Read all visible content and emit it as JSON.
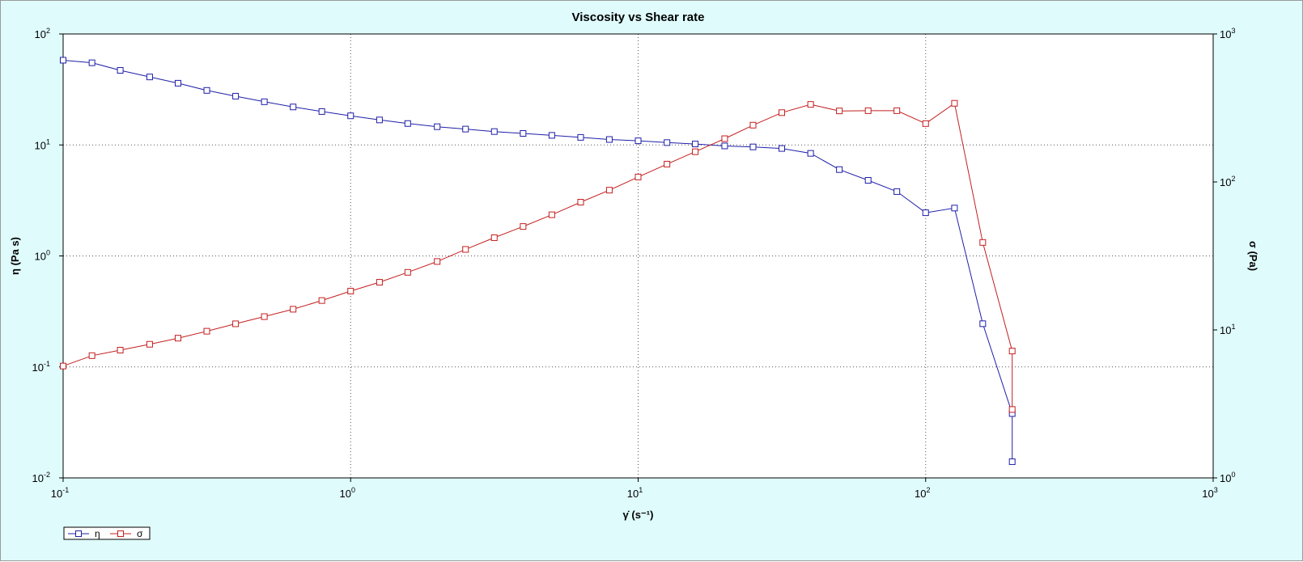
{
  "chart_data": {
    "type": "line",
    "title": "Viscosity vs Shear rate",
    "xlabel": "γ̇ (s⁻¹)",
    "ylabel_left": "η (Pa s)",
    "ylabel_right": "σ (Pa)",
    "x_scale": "log",
    "y_left_scale": "log",
    "y_right_scale": "log",
    "xlim": [
      0.1,
      1000
    ],
    "ylim_left": [
      0.01,
      100
    ],
    "ylim_right": [
      1,
      1000
    ],
    "x_ticks": [
      {
        "base": "10",
        "exp": "-1",
        "value": 0.1
      },
      {
        "base": "10",
        "exp": "0",
        "value": 1
      },
      {
        "base": "10",
        "exp": "1",
        "value": 10
      },
      {
        "base": "10",
        "exp": "2",
        "value": 100
      },
      {
        "base": "10",
        "exp": "3",
        "value": 1000
      }
    ],
    "y_left_ticks": [
      {
        "base": "10",
        "exp": "-2",
        "value": 0.01
      },
      {
        "base": "10",
        "exp": "-1",
        "value": 0.1
      },
      {
        "base": "10",
        "exp": "0",
        "value": 1
      },
      {
        "base": "10",
        "exp": "1",
        "value": 10
      },
      {
        "base": "10",
        "exp": "2",
        "value": 100
      }
    ],
    "y_right_ticks": [
      {
        "base": "10",
        "exp": "0",
        "value": 1
      },
      {
        "base": "10",
        "exp": "1",
        "value": 10
      },
      {
        "base": "10",
        "exp": "2",
        "value": 100
      },
      {
        "base": "10",
        "exp": "3",
        "value": 1000
      }
    ],
    "grid": true,
    "legend_position": "bottom-left",
    "series": [
      {
        "name": "η",
        "axis": "left",
        "color": "#1f1fa8",
        "marker": "open-square",
        "points": [
          [
            0.1,
            58
          ],
          [
            0.126,
            55
          ],
          [
            0.158,
            47
          ],
          [
            0.2,
            41
          ],
          [
            0.251,
            36
          ],
          [
            0.316,
            31
          ],
          [
            0.398,
            27.5
          ],
          [
            0.501,
            24.5
          ],
          [
            0.631,
            22
          ],
          [
            0.794,
            20
          ],
          [
            1.0,
            18.3
          ],
          [
            1.26,
            16.8
          ],
          [
            1.58,
            15.6
          ],
          [
            2.0,
            14.6
          ],
          [
            2.51,
            13.9
          ],
          [
            3.16,
            13.2
          ],
          [
            3.98,
            12.7
          ],
          [
            5.01,
            12.2
          ],
          [
            6.31,
            11.7
          ],
          [
            7.94,
            11.2
          ],
          [
            10.0,
            10.9
          ],
          [
            12.6,
            10.5
          ],
          [
            15.8,
            10.2
          ],
          [
            20.0,
            9.8
          ],
          [
            25.1,
            9.6
          ],
          [
            31.6,
            9.3
          ],
          [
            39.8,
            8.4
          ],
          [
            50.1,
            6.0
          ],
          [
            63.1,
            4.8
          ],
          [
            79.4,
            3.8
          ],
          [
            100,
            2.45
          ],
          [
            126,
            2.7
          ],
          [
            158,
            0.245
          ],
          [
            200,
            0.038
          ],
          [
            200,
            0.014
          ]
        ]
      },
      {
        "name": "σ",
        "axis": "right",
        "color": "#c41f1f",
        "marker": "open-square",
        "points": [
          [
            0.1,
            5.7
          ],
          [
            0.126,
            6.7
          ],
          [
            0.158,
            7.3
          ],
          [
            0.2,
            8.0
          ],
          [
            0.251,
            8.8
          ],
          [
            0.316,
            9.8
          ],
          [
            0.398,
            11
          ],
          [
            0.501,
            12.3
          ],
          [
            0.631,
            13.8
          ],
          [
            0.794,
            15.8
          ],
          [
            1.0,
            18.3
          ],
          [
            1.26,
            21
          ],
          [
            1.58,
            24.5
          ],
          [
            2.0,
            29
          ],
          [
            2.51,
            35
          ],
          [
            3.16,
            42
          ],
          [
            3.98,
            50
          ],
          [
            5.01,
            60
          ],
          [
            6.31,
            73
          ],
          [
            7.94,
            88
          ],
          [
            10.0,
            108
          ],
          [
            12.6,
            132
          ],
          [
            15.8,
            160
          ],
          [
            20.0,
            196
          ],
          [
            25.1,
            242
          ],
          [
            31.6,
            294
          ],
          [
            39.8,
            334
          ],
          [
            50.1,
            302
          ],
          [
            63.1,
            303
          ],
          [
            79.4,
            303
          ],
          [
            100,
            248
          ],
          [
            126,
            340
          ],
          [
            158,
            39
          ],
          [
            200,
            7.2
          ],
          [
            200,
            2.9
          ]
        ]
      }
    ]
  }
}
